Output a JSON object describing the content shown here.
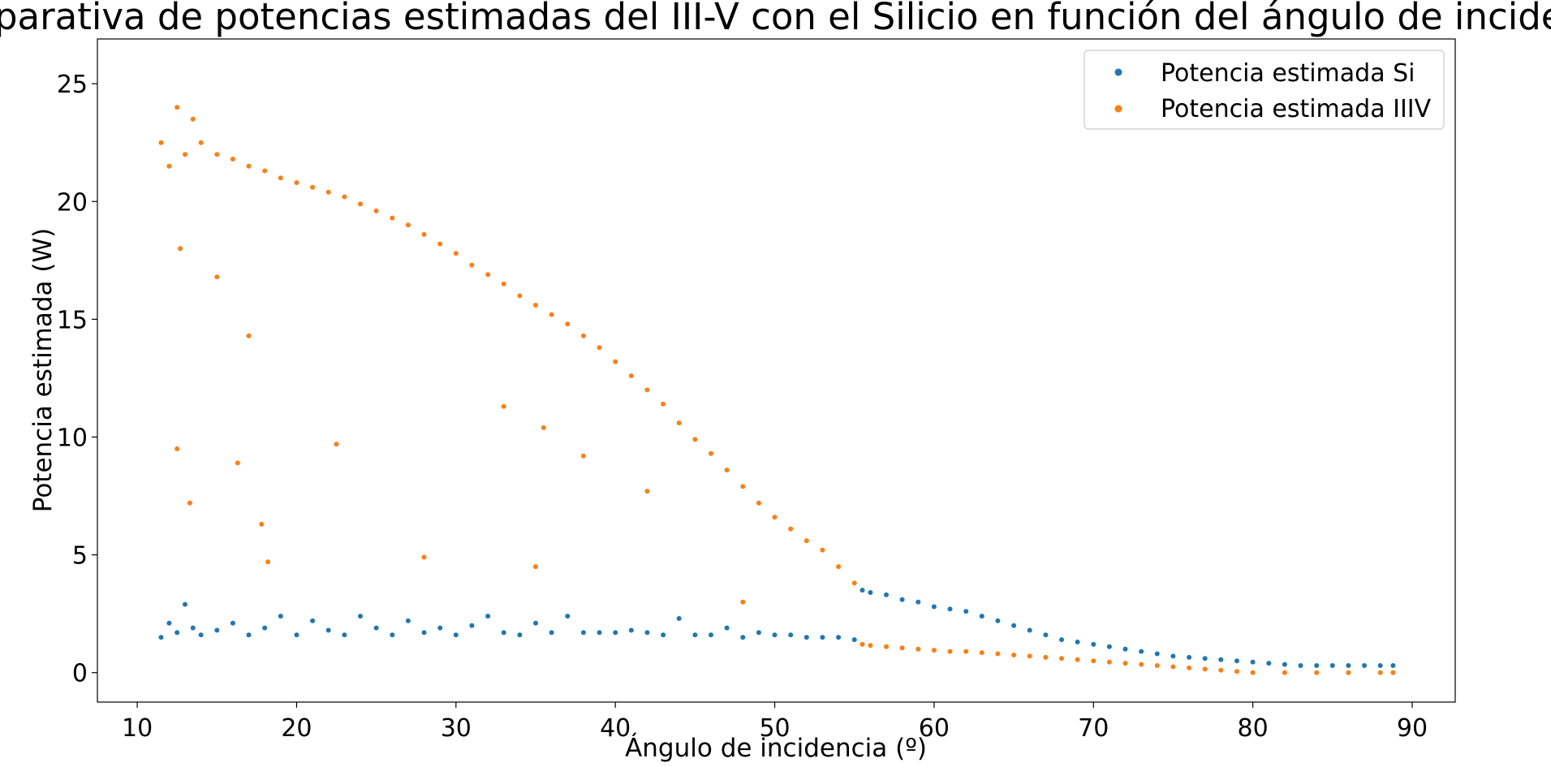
{
  "chart_data": {
    "type": "scatter",
    "title": "Comparativa de potencias estimadas del III-V con el Silicio en función del ángulo de incidencia",
    "xlabel": "Ángulo de incidencia (º)",
    "ylabel": "Potencia estimada (W)",
    "xlim": [
      7.5,
      92.7
    ],
    "ylim": [
      -1.25,
      26.9
    ],
    "xticks": [
      10,
      20,
      30,
      40,
      50,
      60,
      70,
      80,
      90
    ],
    "yticks": [
      0,
      5,
      10,
      15,
      20,
      25
    ],
    "grid": false,
    "legend_position": "top-right",
    "series": [
      {
        "name": "Potencia estimada Si",
        "color": "#1f77b4",
        "points": [
          [
            11.5,
            1.5
          ],
          [
            12.0,
            2.1
          ],
          [
            12.5,
            1.7
          ],
          [
            13.0,
            2.9
          ],
          [
            13.5,
            1.9
          ],
          [
            14.0,
            1.6
          ],
          [
            15.0,
            1.8
          ],
          [
            16.0,
            2.1
          ],
          [
            17.0,
            1.6
          ],
          [
            18.0,
            1.9
          ],
          [
            19.0,
            2.4
          ],
          [
            20.0,
            1.6
          ],
          [
            21.0,
            2.2
          ],
          [
            22.0,
            1.8
          ],
          [
            23.0,
            1.6
          ],
          [
            24.0,
            2.4
          ],
          [
            25.0,
            1.9
          ],
          [
            26.0,
            1.6
          ],
          [
            27.0,
            2.2
          ],
          [
            28.0,
            1.7
          ],
          [
            29.0,
            1.9
          ],
          [
            30.0,
            1.6
          ],
          [
            31.0,
            2.0
          ],
          [
            32.0,
            2.4
          ],
          [
            33.0,
            1.7
          ],
          [
            34.0,
            1.6
          ],
          [
            35.0,
            2.1
          ],
          [
            36.0,
            1.7
          ],
          [
            37.0,
            2.4
          ],
          [
            38.0,
            1.7
          ],
          [
            39.0,
            1.7
          ],
          [
            40.0,
            1.7
          ],
          [
            41.0,
            1.8
          ],
          [
            42.0,
            1.7
          ],
          [
            43.0,
            1.6
          ],
          [
            44.0,
            2.3
          ],
          [
            45.0,
            1.6
          ],
          [
            46.0,
            1.6
          ],
          [
            47.0,
            1.9
          ],
          [
            48.0,
            1.5
          ],
          [
            49.0,
            1.7
          ],
          [
            50.0,
            1.6
          ],
          [
            51.0,
            1.6
          ],
          [
            52.0,
            1.5
          ],
          [
            53.0,
            1.5
          ],
          [
            54.0,
            1.5
          ],
          [
            55.0,
            1.4
          ],
          [
            55.5,
            3.5
          ],
          [
            56.0,
            3.4
          ],
          [
            57.0,
            3.3
          ],
          [
            58.0,
            3.1
          ],
          [
            59.0,
            3.0
          ],
          [
            60.0,
            2.8
          ],
          [
            61.0,
            2.7
          ],
          [
            62.0,
            2.6
          ],
          [
            63.0,
            2.4
          ],
          [
            64.0,
            2.2
          ],
          [
            65.0,
            2.0
          ],
          [
            66.0,
            1.8
          ],
          [
            67.0,
            1.6
          ],
          [
            68.0,
            1.4
          ],
          [
            69.0,
            1.3
          ],
          [
            70.0,
            1.2
          ],
          [
            71.0,
            1.1
          ],
          [
            72.0,
            1.0
          ],
          [
            73.0,
            0.9
          ],
          [
            74.0,
            0.8
          ],
          [
            75.0,
            0.7
          ],
          [
            76.0,
            0.65
          ],
          [
            77.0,
            0.6
          ],
          [
            78.0,
            0.55
          ],
          [
            79.0,
            0.5
          ],
          [
            80.0,
            0.45
          ],
          [
            81.0,
            0.4
          ],
          [
            82.0,
            0.35
          ],
          [
            83.0,
            0.3
          ],
          [
            84.0,
            0.3
          ],
          [
            85.0,
            0.3
          ],
          [
            86.0,
            0.3
          ],
          [
            87.0,
            0.3
          ],
          [
            88.0,
            0.3
          ],
          [
            88.8,
            0.3
          ]
        ]
      },
      {
        "name": "Potencia estimada IIIV",
        "color": "#ff7f0e",
        "points": [
          [
            11.5,
            22.5
          ],
          [
            12.0,
            21.5
          ],
          [
            12.5,
            24.0
          ],
          [
            13.0,
            22.0
          ],
          [
            13.5,
            23.5
          ],
          [
            14.0,
            22.5
          ],
          [
            15.0,
            22.0
          ],
          [
            16.0,
            21.8
          ],
          [
            17.0,
            21.5
          ],
          [
            18.0,
            21.3
          ],
          [
            19.0,
            21.0
          ],
          [
            20.0,
            20.8
          ],
          [
            21.0,
            20.6
          ],
          [
            22.0,
            20.4
          ],
          [
            23.0,
            20.2
          ],
          [
            24.0,
            19.9
          ],
          [
            25.0,
            19.6
          ],
          [
            26.0,
            19.3
          ],
          [
            27.0,
            19.0
          ],
          [
            28.0,
            18.6
          ],
          [
            29.0,
            18.2
          ],
          [
            30.0,
            17.8
          ],
          [
            31.0,
            17.3
          ],
          [
            32.0,
            16.9
          ],
          [
            33.0,
            16.5
          ],
          [
            34.0,
            16.0
          ],
          [
            35.0,
            15.6
          ],
          [
            36.0,
            15.2
          ],
          [
            37.0,
            14.8
          ],
          [
            38.0,
            14.3
          ],
          [
            39.0,
            13.8
          ],
          [
            40.0,
            13.2
          ],
          [
            41.0,
            12.6
          ],
          [
            42.0,
            12.0
          ],
          [
            43.0,
            11.4
          ],
          [
            44.0,
            10.6
          ],
          [
            45.0,
            9.9
          ],
          [
            46.0,
            9.3
          ],
          [
            47.0,
            8.6
          ],
          [
            48.0,
            7.9
          ],
          [
            49.0,
            7.2
          ],
          [
            50.0,
            6.6
          ],
          [
            51.0,
            6.1
          ],
          [
            52.0,
            5.6
          ],
          [
            53.0,
            5.2
          ],
          [
            54.0,
            4.5
          ],
          [
            55.0,
            3.8
          ],
          [
            55.5,
            1.2
          ],
          [
            56.0,
            1.15
          ],
          [
            57.0,
            1.1
          ],
          [
            58.0,
            1.05
          ],
          [
            59.0,
            1.0
          ],
          [
            60.0,
            0.95
          ],
          [
            61.0,
            0.9
          ],
          [
            62.0,
            0.9
          ],
          [
            63.0,
            0.85
          ],
          [
            64.0,
            0.8
          ],
          [
            65.0,
            0.75
          ],
          [
            66.0,
            0.7
          ],
          [
            67.0,
            0.65
          ],
          [
            68.0,
            0.6
          ],
          [
            69.0,
            0.55
          ],
          [
            70.0,
            0.5
          ],
          [
            71.0,
            0.45
          ],
          [
            72.0,
            0.4
          ],
          [
            73.0,
            0.35
          ],
          [
            74.0,
            0.3
          ],
          [
            75.0,
            0.25
          ],
          [
            76.0,
            0.2
          ],
          [
            77.0,
            0.15
          ],
          [
            78.0,
            0.1
          ],
          [
            79.0,
            0.05
          ],
          [
            80.0,
            0.0
          ],
          [
            82.0,
            0.0
          ],
          [
            84.0,
            0.0
          ],
          [
            86.0,
            0.0
          ],
          [
            88.0,
            0.0
          ],
          [
            88.8,
            0.0
          ],
          [
            12.5,
            9.5
          ],
          [
            13.3,
            7.2
          ],
          [
            16.3,
            8.9
          ],
          [
            17.8,
            6.3
          ],
          [
            18.2,
            4.7
          ],
          [
            22.5,
            9.7
          ],
          [
            28.0,
            4.9
          ],
          [
            35.0,
            4.5
          ],
          [
            35.5,
            10.4
          ],
          [
            38.0,
            9.2
          ],
          [
            42.0,
            7.7
          ],
          [
            33.0,
            11.3
          ],
          [
            48.0,
            3.0
          ],
          [
            15.0,
            16.8
          ],
          [
            17.0,
            14.3
          ],
          [
            12.7,
            18.0
          ]
        ]
      }
    ]
  }
}
